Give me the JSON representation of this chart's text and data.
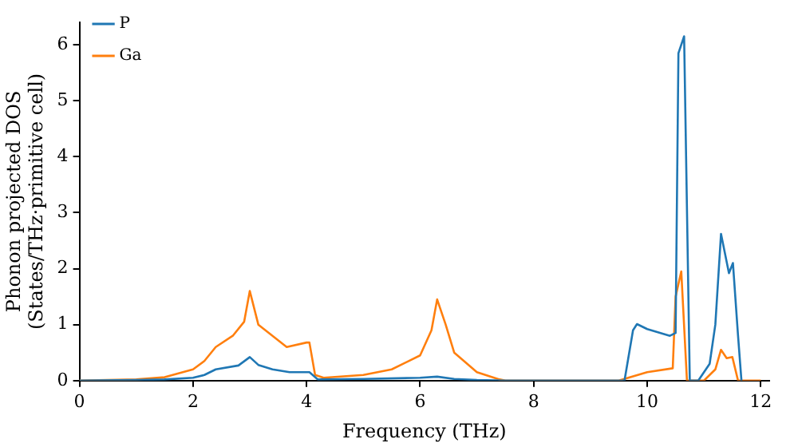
{
  "chart_data": {
    "type": "line",
    "xlabel": "Frequency (THz)",
    "ylabel": "Phonon projected DOS\n(States/THz·primitive cell)",
    "xlim": [
      0,
      12.15
    ],
    "ylim": [
      0,
      6.4
    ],
    "xticks": [
      0,
      2,
      4,
      6,
      8,
      10,
      12
    ],
    "yticks": [
      0,
      1,
      2,
      3,
      4,
      5,
      6
    ],
    "grid": false,
    "legend": "top left",
    "marker": "none",
    "line_style": "solid",
    "series": [
      {
        "name": "P",
        "color": "#1f77b4",
        "x": [
          0,
          1,
          1.5,
          2,
          2.2,
          2.4,
          2.8,
          3.0,
          3.15,
          3.4,
          3.7,
          4.05,
          4.2,
          5,
          6,
          6.3,
          6.6,
          7,
          7.5,
          9.6,
          9.75,
          9.82,
          10,
          10.4,
          10.5,
          10.55,
          10.65,
          10.75,
          10.9,
          11.1,
          11.2,
          11.3,
          11.44,
          11.51,
          11.6,
          11.66
        ],
        "values": [
          0,
          0.01,
          0.02,
          0.05,
          0.1,
          0.2,
          0.27,
          0.42,
          0.28,
          0.2,
          0.15,
          0.15,
          0.02,
          0.03,
          0.05,
          0.07,
          0.03,
          0.01,
          0,
          0,
          0.9,
          1.01,
          0.92,
          0.8,
          0.85,
          5.85,
          6.15,
          0,
          0,
          0.3,
          1.0,
          2.62,
          1.92,
          2.1,
          0.8,
          0
        ]
      },
      {
        "name": "Ga",
        "color": "#ff7f0e",
        "x": [
          0,
          1,
          1.5,
          2,
          2.2,
          2.4,
          2.7,
          2.9,
          3.0,
          3.15,
          3.4,
          3.65,
          4.0,
          4.05,
          4.15,
          4.3,
          5,
          5.5,
          6.0,
          6.2,
          6.3,
          6.45,
          6.6,
          7,
          7.4,
          7.5,
          9.5,
          10,
          10.45,
          10.5,
          10.6,
          10.7,
          11,
          11.2,
          11.3,
          11.4,
          11.5,
          11.6,
          12
        ],
        "values": [
          0,
          0.02,
          0.06,
          0.2,
          0.35,
          0.6,
          0.8,
          1.05,
          1.6,
          1.0,
          0.8,
          0.6,
          0.68,
          0.68,
          0.1,
          0.05,
          0.1,
          0.2,
          0.45,
          0.9,
          1.45,
          1.0,
          0.5,
          0.15,
          0.02,
          0,
          0,
          0.15,
          0.22,
          1.5,
          1.95,
          0,
          0,
          0.2,
          0.55,
          0.4,
          0.42,
          0,
          0
        ]
      }
    ]
  }
}
